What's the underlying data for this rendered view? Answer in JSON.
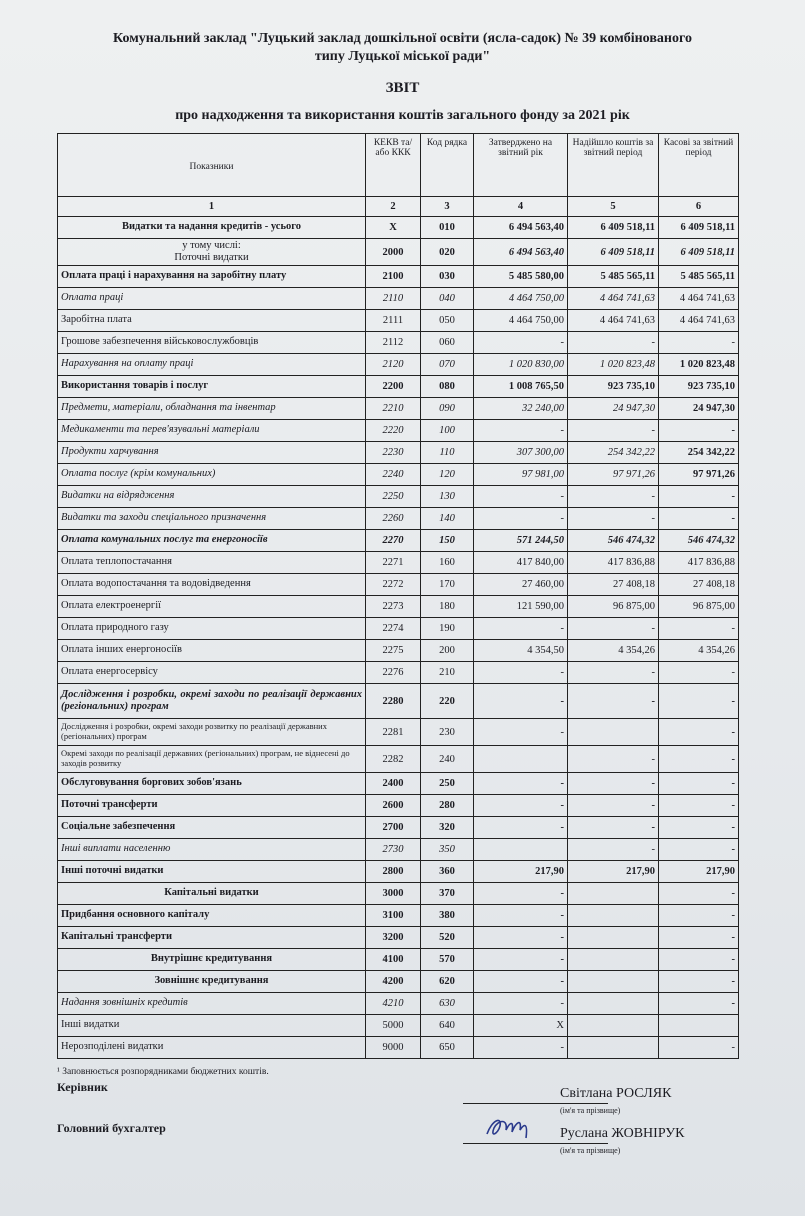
{
  "header": {
    "institution_line1": "Комунальний заклад \"Луцький заклад дошкільної освіти (ясла-садок) № 39 комбінованого",
    "institution_line2": "типу Луцької міської ради\"",
    "title": "ЗВІТ",
    "subtitle": "про надходження та використання коштів загального фонду  за 2021 рік"
  },
  "table": {
    "columns": [
      "Показники",
      "КЕКВ та/або ККК",
      "Код рядка",
      "Затверджено на звітний рік",
      "Надійшло коштів за звітний період",
      "Касові за звітний період"
    ],
    "column_numbers": [
      "1",
      "2",
      "3",
      "4",
      "5",
      "6"
    ],
    "rows": [
      {
        "s": "b ctr",
        "cells": [
          "Видатки та надання кредитів -  усього",
          "X",
          "010",
          "6 494 563,40",
          "6 409 518,11",
          "6 409 518,11"
        ]
      },
      {
        "s": "ctr mid b2",
        "cells": [
          "у тому числі:\nПоточні видатки",
          "2000",
          "020",
          "6 494 563,40",
          "6 409 518,11",
          "6 409 518,11"
        ]
      },
      {
        "s": "b",
        "cells": [
          "Оплата праці і нарахування на заробітну плату",
          "2100",
          "030",
          "5 485 580,00",
          "5 485 565,11",
          "5 485 565,11"
        ]
      },
      {
        "s": "i iall",
        "cells": [
          "Оплата праці",
          "2110",
          "040",
          "4 464 750,00",
          "4 464 741,63",
          "4 464 741,63"
        ]
      },
      {
        "s": "",
        "cells": [
          "Заробітна плата",
          "2111",
          "050",
          "4 464 750,00",
          "4 464 741,63",
          "4 464 741,63"
        ]
      },
      {
        "s": "",
        "cells": [
          "Грошове  забезпечення військовослужбовців",
          "2112",
          "060",
          "-",
          "-",
          "-"
        ]
      },
      {
        "s": "i",
        "cells": [
          "Нарахування на оплату праці",
          "2120",
          "070",
          "1 020 830,00",
          "1 020 823,48",
          "1 020 823,48"
        ]
      },
      {
        "s": "b",
        "cells": [
          "Використання товарів і послуг",
          "2200",
          "080",
          "1 008 765,50",
          "923 735,10",
          "923 735,10"
        ]
      },
      {
        "s": "i",
        "cells": [
          "Предмети, матеріали, обладнання та інвентар",
          "2210",
          "090",
          "32 240,00",
          "24 947,30",
          "24 947,30"
        ]
      },
      {
        "s": "i",
        "cells": [
          "Медикаменти та перев'язувальні матеріали",
          "2220",
          "100",
          "-",
          "-",
          "-"
        ]
      },
      {
        "s": "i",
        "cells": [
          "Продукти харчування",
          "2230",
          "110",
          "307 300,00",
          "254 342,22",
          "254 342,22"
        ]
      },
      {
        "s": "i",
        "cells": [
          "Оплата послуг (крім комунальних)",
          "2240",
          "120",
          "97 981,00",
          "97 971,26",
          "97 971,26"
        ]
      },
      {
        "s": "i",
        "cells": [
          "Видатки на відрядження",
          "2250",
          "130",
          "-",
          "-",
          "-"
        ]
      },
      {
        "s": "i",
        "cells": [
          "Видатки та заходи спеціального призначення",
          "2260",
          "140",
          "-",
          "-",
          "-"
        ]
      },
      {
        "s": "b i",
        "cells": [
          "Оплата комунальних послуг та енергоносіїв",
          "2270",
          "150",
          "571 244,50",
          "546 474,32",
          "546 474,32"
        ]
      },
      {
        "s": "",
        "cells": [
          "Оплата теплопостачання",
          "2271",
          "160",
          "417 840,00",
          "417 836,88",
          "417 836,88"
        ]
      },
      {
        "s": "",
        "cells": [
          "Оплата водопостачання  та водовідведення",
          "2272",
          "170",
          "27 460,00",
          "27 408,18",
          "27 408,18"
        ]
      },
      {
        "s": "",
        "cells": [
          "Оплата електроенергії",
          "2273",
          "180",
          "121 590,00",
          "96 875,00",
          "96 875,00"
        ]
      },
      {
        "s": "",
        "cells": [
          "Оплата природного газу",
          "2274",
          "190",
          "-",
          "-",
          "-"
        ]
      },
      {
        "s": "",
        "cells": [
          "Оплата інших енергоносіїв",
          "2275",
          "200",
          "4 354,50",
          "4 354,26",
          "4 354,26"
        ]
      },
      {
        "s": "",
        "cells": [
          "Оплата енергосервісу",
          "2276",
          "210",
          "-",
          "-",
          "-"
        ]
      },
      {
        "s": "b just tall",
        "cells": [
          "Дослідження і розробки, окремі заходи по реалізації державних (регіональних) програм",
          "2280",
          "220",
          "-",
          "-",
          "-"
        ]
      },
      {
        "s": "small mid",
        "cells": [
          "Дослідження і розробки, окремі заходи розвитку по реалізації державних (регіональних) програм",
          "2281",
          "230",
          "-",
          "",
          "-"
        ]
      },
      {
        "s": "small mid",
        "cells": [
          "Окремі заходи по реалізації державних (регіональних) програм, не віднесені до заходів розвитку",
          "2282",
          "240",
          "",
          "-",
          "-"
        ]
      },
      {
        "s": "b",
        "cells": [
          "Обслуговування боргових зобов'язань",
          "2400",
          "250",
          "-",
          "-",
          "-"
        ]
      },
      {
        "s": "b",
        "cells": [
          "Поточні трансферти",
          "2600",
          "280",
          "-",
          "-",
          "-"
        ]
      },
      {
        "s": "b",
        "cells": [
          "Соціальне забезпечення",
          "2700",
          "320",
          "-",
          "-",
          "-"
        ]
      },
      {
        "s": "i",
        "cells": [
          "Інші виплати населенню",
          "2730",
          "350",
          "",
          "-",
          "-"
        ]
      },
      {
        "s": "b",
        "cells": [
          "Інші поточні видатки",
          "2800",
          "360",
          "217,90",
          "217,90",
          "217,90"
        ]
      },
      {
        "s": "b ctr",
        "cells": [
          "Капітальні видатки",
          "3000",
          "370",
          "-",
          "",
          "-"
        ]
      },
      {
        "s": "b",
        "cells": [
          "Придбання основного капіталу",
          "3100",
          "380",
          "-",
          "",
          "-"
        ]
      },
      {
        "s": "b",
        "cells": [
          "Капітальні трансферти",
          "3200",
          "520",
          "-",
          "",
          "-"
        ]
      },
      {
        "s": "b ctr",
        "cells": [
          "Внутрішнє кредитування",
          "4100",
          "570",
          "-",
          "",
          "-"
        ]
      },
      {
        "s": "b ctr",
        "cells": [
          "Зовнішнє кредитування",
          "4200",
          "620",
          "-",
          "",
          "-"
        ]
      },
      {
        "s": "i",
        "cells": [
          "Надання зовнішніх кредитів",
          "4210",
          "630",
          "-",
          "",
          "-"
        ]
      },
      {
        "s": "",
        "cells": [
          "Інші видатки",
          "5000",
          "640",
          "X",
          "",
          ""
        ]
      },
      {
        "s": "",
        "cells": [
          "Нерозподілені видатки",
          "9000",
          "650",
          "-",
          "",
          "-"
        ]
      }
    ]
  },
  "footnote": "¹ Заповнюється розпорядниками бюджетних коштів.",
  "signatures": [
    {
      "role": "Керівник",
      "name": "Світлана РОСЛЯК",
      "caption": "(ім'я та прізвище)"
    },
    {
      "role": "Головний бухгалтер",
      "name": "Руслана ЖОВНІРУК",
      "caption": "(ім'я та прізвище)"
    }
  ],
  "colors": {
    "paper": "#e9ecef",
    "ink": "#1c1c22",
    "signature_ink": "#2a3a8c"
  }
}
